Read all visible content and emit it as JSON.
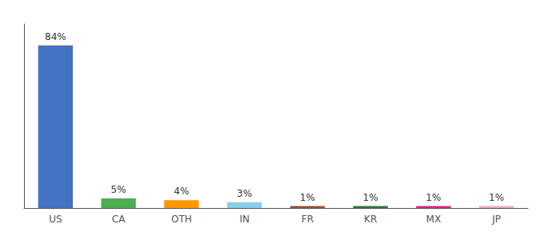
{
  "chart_data": {
    "type": "bar",
    "categories": [
      "US",
      "CA",
      "OTH",
      "IN",
      "FR",
      "KR",
      "MX",
      "JP"
    ],
    "values": [
      84,
      5,
      4,
      3,
      1,
      1,
      1,
      1
    ],
    "value_labels": [
      "84%",
      "5%",
      "4%",
      "3%",
      "1%",
      "1%",
      "1%",
      "1%"
    ],
    "colors": [
      "#4472c4",
      "#4CAF50",
      "#FF9800",
      "#87CEEB",
      "#A0522D",
      "#2E7D32",
      "#E91E8C",
      "#F8A8B8"
    ],
    "ylim": [
      0,
      95
    ],
    "grid": false,
    "data_labels": true,
    "tick_labels": "x"
  }
}
